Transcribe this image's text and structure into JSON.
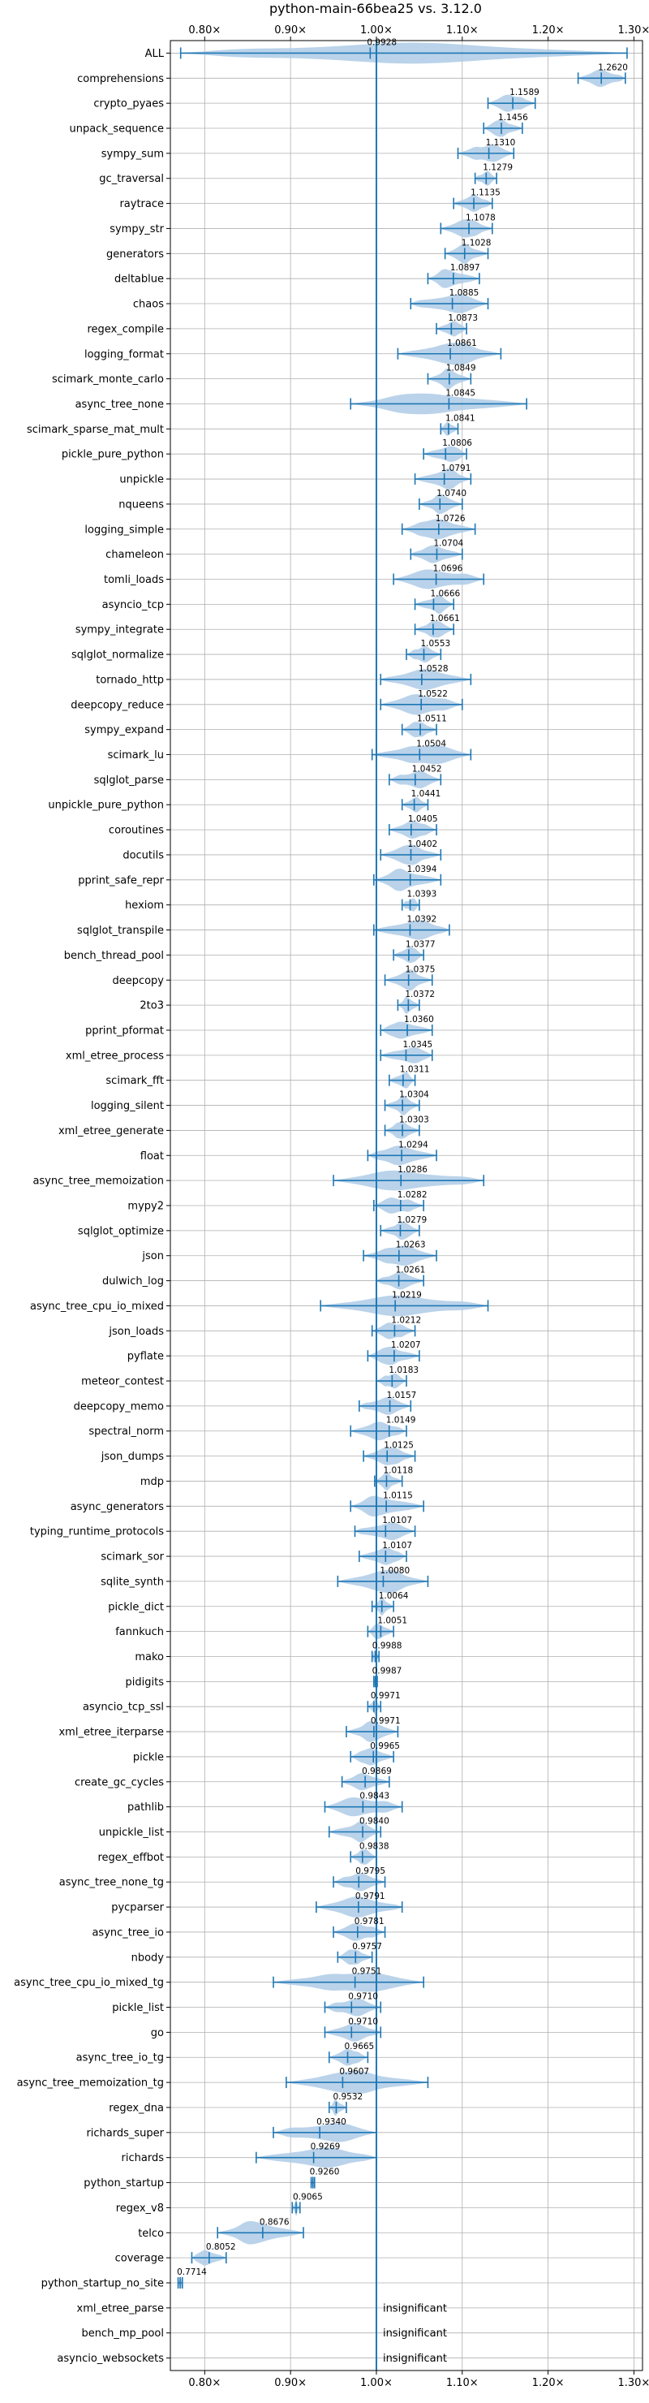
{
  "chart_data": {
    "type": "violin",
    "title": "python-main-66bea25 vs. 3.12.0",
    "x_ticks": [
      0.8,
      0.9,
      1.0,
      1.1,
      1.2,
      1.3
    ],
    "x_tick_labels": [
      "0.80×",
      "0.90×",
      "1.00×",
      "1.10×",
      "1.20×",
      "1.30×"
    ],
    "xlim": [
      0.76,
      1.31
    ],
    "reference_line": 1.0,
    "grid": true,
    "colors": {
      "violin": "#aecbe6",
      "marker": "#1f77b4",
      "ref_line": "#1f77b4",
      "grid": "#b0b0b0"
    },
    "benchmarks": [
      {
        "name": "ALL",
        "value": 0.9928,
        "label": "0.9928",
        "min": 0.772,
        "max": 1.292
      },
      {
        "name": "comprehensions",
        "value": 1.262,
        "label": "1.2620",
        "min": 1.235,
        "max": 1.29
      },
      {
        "name": "crypto_pyaes",
        "value": 1.1589,
        "label": "1.1589",
        "min": 1.13,
        "max": 1.185
      },
      {
        "name": "unpack_sequence",
        "value": 1.1456,
        "label": "1.1456",
        "min": 1.125,
        "max": 1.17
      },
      {
        "name": "sympy_sum",
        "value": 1.131,
        "label": "1.1310",
        "min": 1.095,
        "max": 1.16
      },
      {
        "name": "gc_traversal",
        "value": 1.1279,
        "label": "1.1279",
        "min": 1.115,
        "max": 1.14
      },
      {
        "name": "raytrace",
        "value": 1.1135,
        "label": "1.1135",
        "min": 1.09,
        "max": 1.135
      },
      {
        "name": "sympy_str",
        "value": 1.1078,
        "label": "1.1078",
        "min": 1.075,
        "max": 1.135
      },
      {
        "name": "generators",
        "value": 1.1028,
        "label": "1.1028",
        "min": 1.08,
        "max": 1.13
      },
      {
        "name": "deltablue",
        "value": 1.0897,
        "label": "1.0897",
        "min": 1.06,
        "max": 1.12
      },
      {
        "name": "chaos",
        "value": 1.0885,
        "label": "1.0885",
        "min": 1.04,
        "max": 1.13
      },
      {
        "name": "regex_compile",
        "value": 1.0873,
        "label": "1.0873",
        "min": 1.07,
        "max": 1.105
      },
      {
        "name": "logging_format",
        "value": 1.0861,
        "label": "1.0861",
        "min": 1.025,
        "max": 1.145
      },
      {
        "name": "scimark_monte_carlo",
        "value": 1.0849,
        "label": "1.0849",
        "min": 1.06,
        "max": 1.11
      },
      {
        "name": "async_tree_none",
        "value": 1.0845,
        "label": "1.0845",
        "min": 0.97,
        "max": 1.175
      },
      {
        "name": "scimark_sparse_mat_mult",
        "value": 1.0841,
        "label": "1.0841",
        "min": 1.075,
        "max": 1.095
      },
      {
        "name": "pickle_pure_python",
        "value": 1.0806,
        "label": "1.0806",
        "min": 1.055,
        "max": 1.105
      },
      {
        "name": "unpickle",
        "value": 1.0791,
        "label": "1.0791",
        "min": 1.045,
        "max": 1.11
      },
      {
        "name": "nqueens",
        "value": 1.074,
        "label": "1.0740",
        "min": 1.05,
        "max": 1.1
      },
      {
        "name": "logging_simple",
        "value": 1.0726,
        "label": "1.0726",
        "min": 1.03,
        "max": 1.115
      },
      {
        "name": "chameleon",
        "value": 1.0704,
        "label": "1.0704",
        "min": 1.04,
        "max": 1.1
      },
      {
        "name": "tomli_loads",
        "value": 1.0696,
        "label": "1.0696",
        "min": 1.02,
        "max": 1.125
      },
      {
        "name": "asyncio_tcp",
        "value": 1.0666,
        "label": "1.0666",
        "min": 1.045,
        "max": 1.09
      },
      {
        "name": "sympy_integrate",
        "value": 1.0661,
        "label": "1.0661",
        "min": 1.045,
        "max": 1.09
      },
      {
        "name": "sqlglot_normalize",
        "value": 1.0553,
        "label": "1.0553",
        "min": 1.035,
        "max": 1.075
      },
      {
        "name": "tornado_http",
        "value": 1.0528,
        "label": "1.0528",
        "min": 1.005,
        "max": 1.11
      },
      {
        "name": "deepcopy_reduce",
        "value": 1.0522,
        "label": "1.0522",
        "min": 1.005,
        "max": 1.1
      },
      {
        "name": "sympy_expand",
        "value": 1.0511,
        "label": "1.0511",
        "min": 1.03,
        "max": 1.07
      },
      {
        "name": "scimark_lu",
        "value": 1.0504,
        "label": "1.0504",
        "min": 0.995,
        "max": 1.11
      },
      {
        "name": "sqlglot_parse",
        "value": 1.0452,
        "label": "1.0452",
        "min": 1.015,
        "max": 1.075
      },
      {
        "name": "unpickle_pure_python",
        "value": 1.0441,
        "label": "1.0441",
        "min": 1.03,
        "max": 1.06
      },
      {
        "name": "coroutines",
        "value": 1.0405,
        "label": "1.0405",
        "min": 1.015,
        "max": 1.07
      },
      {
        "name": "docutils",
        "value": 1.0402,
        "label": "1.0402",
        "min": 1.005,
        "max": 1.075
      },
      {
        "name": "pprint_safe_repr",
        "value": 1.0394,
        "label": "1.0394",
        "min": 0.997,
        "max": 1.075
      },
      {
        "name": "hexiom",
        "value": 1.0393,
        "label": "1.0393",
        "min": 1.03,
        "max": 1.05
      },
      {
        "name": "sqlglot_transpile",
        "value": 1.0392,
        "label": "1.0392",
        "min": 0.997,
        "max": 1.085
      },
      {
        "name": "bench_thread_pool",
        "value": 1.0377,
        "label": "1.0377",
        "min": 1.02,
        "max": 1.055
      },
      {
        "name": "deepcopy",
        "value": 1.0375,
        "label": "1.0375",
        "min": 1.01,
        "max": 1.065
      },
      {
        "name": "2to3",
        "value": 1.0372,
        "label": "1.0372",
        "min": 1.025,
        "max": 1.05
      },
      {
        "name": "pprint_pformat",
        "value": 1.036,
        "label": "1.0360",
        "min": 1.005,
        "max": 1.065
      },
      {
        "name": "xml_etree_process",
        "value": 1.0345,
        "label": "1.0345",
        "min": 1.005,
        "max": 1.065
      },
      {
        "name": "scimark_fft",
        "value": 1.0311,
        "label": "1.0311",
        "min": 1.015,
        "max": 1.045
      },
      {
        "name": "logging_silent",
        "value": 1.0304,
        "label": "1.0304",
        "min": 1.01,
        "max": 1.05
      },
      {
        "name": "xml_etree_generate",
        "value": 1.0303,
        "label": "1.0303",
        "min": 1.01,
        "max": 1.05
      },
      {
        "name": "float",
        "value": 1.0294,
        "label": "1.0294",
        "min": 0.99,
        "max": 1.07
      },
      {
        "name": "async_tree_memoization",
        "value": 1.0286,
        "label": "1.0286",
        "min": 0.95,
        "max": 1.125
      },
      {
        "name": "mypy2",
        "value": 1.0282,
        "label": "1.0282",
        "min": 0.997,
        "max": 1.055
      },
      {
        "name": "sqlglot_optimize",
        "value": 1.0279,
        "label": "1.0279",
        "min": 1.005,
        "max": 1.05
      },
      {
        "name": "json",
        "value": 1.0263,
        "label": "1.0263",
        "min": 0.985,
        "max": 1.07
      },
      {
        "name": "dulwich_log",
        "value": 1.0261,
        "label": "1.0261",
        "min": 1.0,
        "max": 1.055
      },
      {
        "name": "async_tree_cpu_io_mixed",
        "value": 1.0219,
        "label": "1.0219",
        "min": 0.935,
        "max": 1.13
      },
      {
        "name": "json_loads",
        "value": 1.0212,
        "label": "1.0212",
        "min": 0.995,
        "max": 1.045
      },
      {
        "name": "pyflate",
        "value": 1.0207,
        "label": "1.0207",
        "min": 0.99,
        "max": 1.05
      },
      {
        "name": "meteor_contest",
        "value": 1.0183,
        "label": "1.0183",
        "min": 1.0,
        "max": 1.035
      },
      {
        "name": "deepcopy_memo",
        "value": 1.0157,
        "label": "1.0157",
        "min": 0.98,
        "max": 1.04
      },
      {
        "name": "spectral_norm",
        "value": 1.0149,
        "label": "1.0149",
        "min": 0.97,
        "max": 1.035
      },
      {
        "name": "json_dumps",
        "value": 1.0125,
        "label": "1.0125",
        "min": 0.985,
        "max": 1.045
      },
      {
        "name": "mdp",
        "value": 1.0118,
        "label": "1.0118",
        "min": 0.998,
        "max": 1.03
      },
      {
        "name": "async_generators",
        "value": 1.0115,
        "label": "1.0115",
        "min": 0.97,
        "max": 1.055
      },
      {
        "name": "typing_runtime_protocols",
        "value": 1.0107,
        "label": "1.0107",
        "min": 0.975,
        "max": 1.045
      },
      {
        "name": "scimark_sor",
        "value": 1.0107,
        "label": "1.0107",
        "min": 0.98,
        "max": 1.035
      },
      {
        "name": "sqlite_synth",
        "value": 1.008,
        "label": "1.0080",
        "min": 0.955,
        "max": 1.06
      },
      {
        "name": "pickle_dict",
        "value": 1.0064,
        "label": "1.0064",
        "min": 0.995,
        "max": 1.02
      },
      {
        "name": "fannkuch",
        "value": 1.0051,
        "label": "1.0051",
        "min": 0.99,
        "max": 1.02
      },
      {
        "name": "mako",
        "value": 0.9988,
        "label": "0.9988",
        "min": 0.995,
        "max": 1.003
      },
      {
        "name": "pidigits",
        "value": 0.9987,
        "label": "0.9987",
        "min": 0.997,
        "max": 1.001
      },
      {
        "name": "asyncio_tcp_ssl",
        "value": 0.9971,
        "label": "0.9971",
        "min": 0.99,
        "max": 1.005
      },
      {
        "name": "xml_etree_iterparse",
        "value": 0.9971,
        "label": "0.9971",
        "min": 0.965,
        "max": 1.025
      },
      {
        "name": "pickle",
        "value": 0.9965,
        "label": "0.9965",
        "min": 0.97,
        "max": 1.02
      },
      {
        "name": "create_gc_cycles",
        "value": 0.9869,
        "label": "0.9869",
        "min": 0.96,
        "max": 1.015
      },
      {
        "name": "pathlib",
        "value": 0.9843,
        "label": "0.9843",
        "min": 0.94,
        "max": 1.03
      },
      {
        "name": "unpickle_list",
        "value": 0.984,
        "label": "0.9840",
        "min": 0.945,
        "max": 1.005
      },
      {
        "name": "regex_effbot",
        "value": 0.9838,
        "label": "0.9838",
        "min": 0.97,
        "max": 1.0
      },
      {
        "name": "async_tree_none_tg",
        "value": 0.9795,
        "label": "0.9795",
        "min": 0.95,
        "max": 1.01
      },
      {
        "name": "pycparser",
        "value": 0.9791,
        "label": "0.9791",
        "min": 0.93,
        "max": 1.03
      },
      {
        "name": "async_tree_io",
        "value": 0.9781,
        "label": "0.9781",
        "min": 0.95,
        "max": 1.01
      },
      {
        "name": "nbody",
        "value": 0.9757,
        "label": "0.9757",
        "min": 0.955,
        "max": 0.995
      },
      {
        "name": "async_tree_cpu_io_mixed_tg",
        "value": 0.9751,
        "label": "0.9751",
        "min": 0.88,
        "max": 1.055
      },
      {
        "name": "pickle_list",
        "value": 0.971,
        "label": "0.9710",
        "min": 0.94,
        "max": 1.005
      },
      {
        "name": "go",
        "value": 0.971,
        "label": "0.9710",
        "min": 0.94,
        "max": 1.005
      },
      {
        "name": "async_tree_io_tg",
        "value": 0.9665,
        "label": "0.9665",
        "min": 0.945,
        "max": 0.99
      },
      {
        "name": "async_tree_memoization_tg",
        "value": 0.9607,
        "label": "0.9607",
        "min": 0.895,
        "max": 1.06
      },
      {
        "name": "regex_dna",
        "value": 0.9532,
        "label": "0.9532",
        "min": 0.945,
        "max": 0.965
      },
      {
        "name": "richards_super",
        "value": 0.934,
        "label": "0.9340",
        "min": 0.88,
        "max": 1.0
      },
      {
        "name": "richards",
        "value": 0.9269,
        "label": "0.9269",
        "min": 0.86,
        "max": 1.0
      },
      {
        "name": "python_startup",
        "value": 0.926,
        "label": "0.9260",
        "min": 0.924,
        "max": 0.928
      },
      {
        "name": "regex_v8",
        "value": 0.9065,
        "label": "0.9065",
        "min": 0.902,
        "max": 0.911
      },
      {
        "name": "telco",
        "value": 0.8676,
        "label": "0.8676",
        "min": 0.815,
        "max": 0.915
      },
      {
        "name": "coverage",
        "value": 0.8052,
        "label": "0.8052",
        "min": 0.785,
        "max": 0.825
      },
      {
        "name": "python_startup_no_site",
        "value": 0.7714,
        "label": "0.7714",
        "min": 0.769,
        "max": 0.774
      },
      {
        "name": "xml_etree_parse",
        "value": null,
        "label": "insignificant",
        "min": null,
        "max": null
      },
      {
        "name": "bench_mp_pool",
        "value": null,
        "label": "insignificant",
        "min": null,
        "max": null
      },
      {
        "name": "asyncio_websockets",
        "value": null,
        "label": "insignificant",
        "min": null,
        "max": null
      }
    ]
  }
}
